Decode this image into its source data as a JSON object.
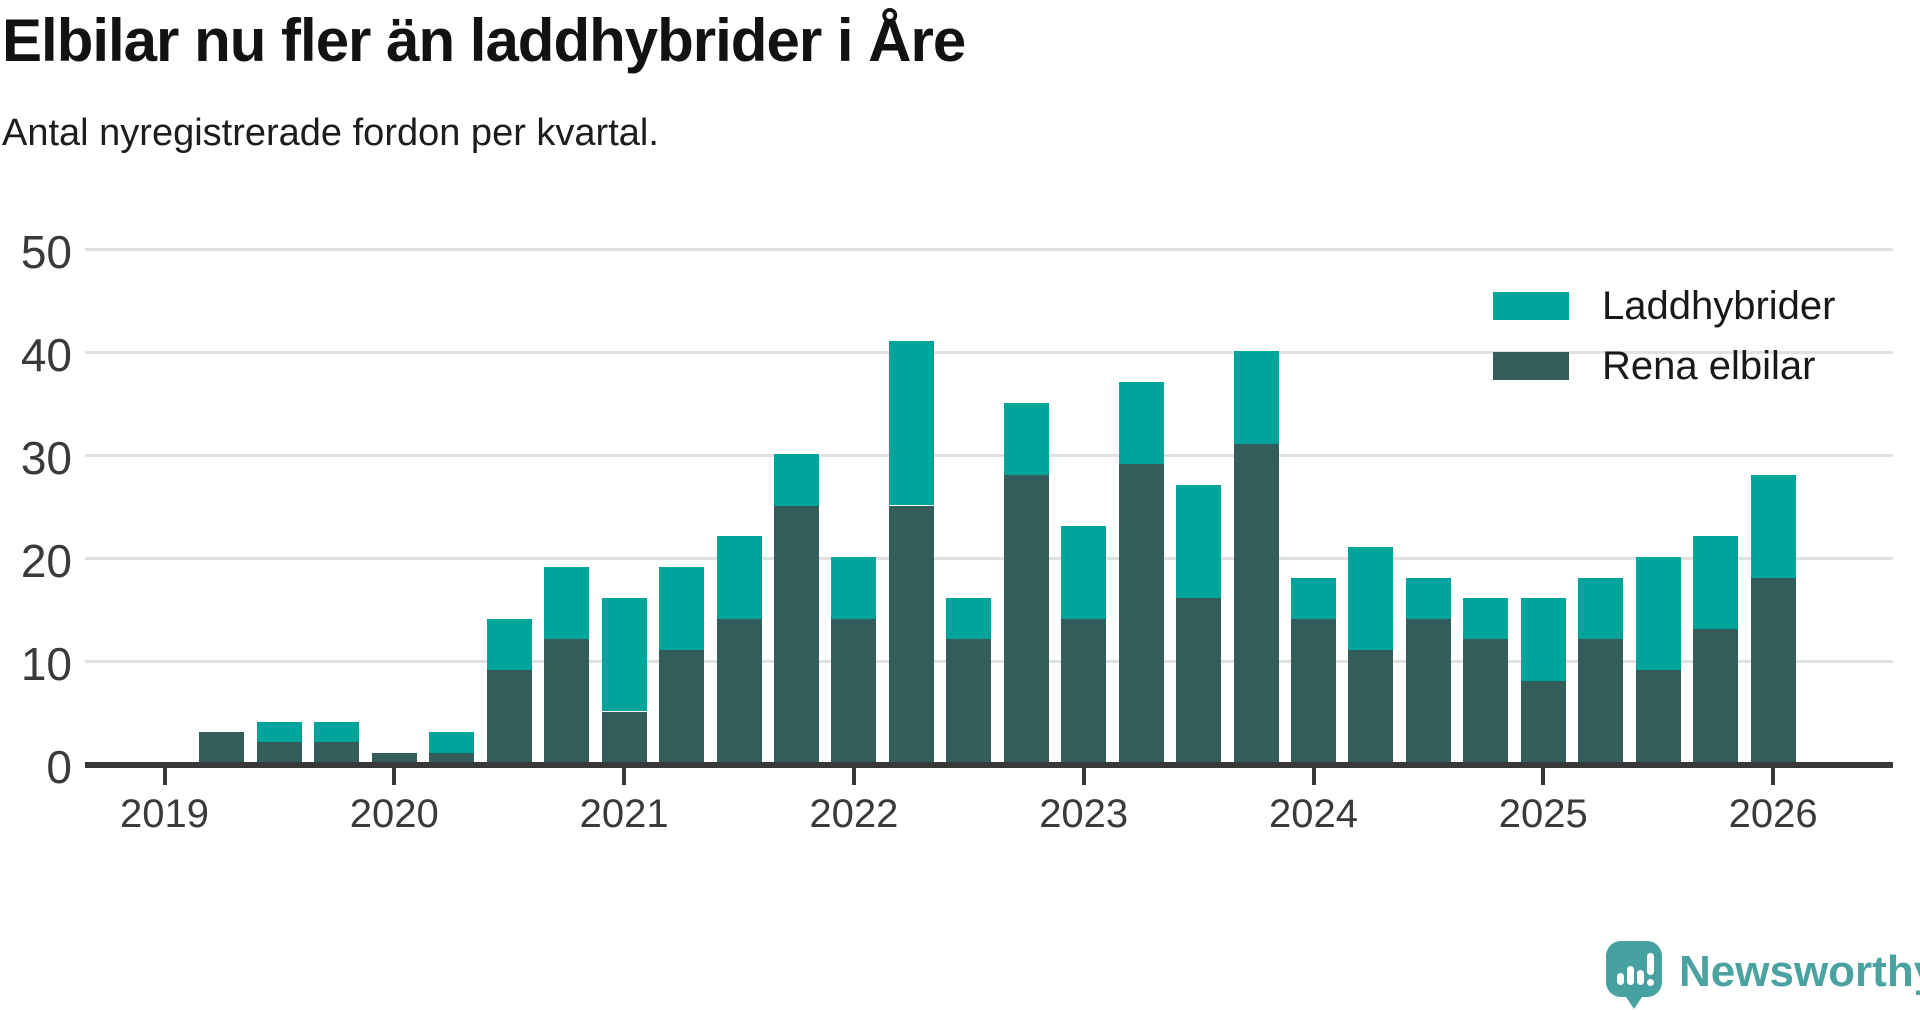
{
  "header": {
    "title": "Elbilar nu fler än laddhybrider i Åre",
    "subtitle": "Antal nyregistrerade fordon per kvartal."
  },
  "chart_data": {
    "type": "bar",
    "stacked": true,
    "title": "Elbilar nu fler än laddhybrider i Åre",
    "subtitle": "Antal nyregistrerade fordon per kvartal.",
    "xlabel": "",
    "ylabel": "",
    "ylim": [
      0,
      50
    ],
    "yticks": [
      0,
      10,
      20,
      30,
      40,
      50
    ],
    "grid": "horizontal",
    "legend_position": "top-right",
    "categories": [
      "2019 Q1",
      "2019 Q2",
      "2019 Q3",
      "2019 Q4",
      "2020 Q1",
      "2020 Q2",
      "2020 Q3",
      "2020 Q4",
      "2021 Q1",
      "2021 Q2",
      "2021 Q3",
      "2021 Q4",
      "2022 Q1",
      "2022 Q2",
      "2022 Q3",
      "2022 Q4",
      "2023 Q1",
      "2023 Q2",
      "2023 Q3",
      "2023 Q4",
      "2024 Q1",
      "2024 Q2",
      "2024 Q3",
      "2024 Q4",
      "2025 Q1",
      "2025 Q2",
      "2025 Q3",
      "2025 Q4",
      "2026 Q1"
    ],
    "series": [
      {
        "name": "Rena elbilar",
        "color": "#335d5a",
        "values": [
          0,
          3,
          2,
          2,
          1,
          1,
          9,
          12,
          5,
          11,
          14,
          25,
          14,
          25,
          12,
          28,
          14,
          29,
          16,
          31,
          14,
          11,
          14,
          12,
          8,
          12,
          9,
          13,
          18
        ]
      },
      {
        "name": "Laddhybrider",
        "color": "#00a49b",
        "values": [
          0,
          0,
          2,
          2,
          0,
          2,
          5,
          7,
          11,
          8,
          8,
          5,
          6,
          16,
          4,
          7,
          9,
          8,
          11,
          9,
          4,
          10,
          4,
          4,
          8,
          6,
          11,
          9,
          10
        ]
      }
    ],
    "stack_order_bottom_to_top": [
      "Rena elbilar",
      "Laddhybrider"
    ],
    "year_ticks": [
      "2019",
      "2020",
      "2021",
      "2022",
      "2023",
      "2024",
      "2025",
      "2026"
    ]
  },
  "legend": {
    "items": [
      {
        "label": "Laddhybrider",
        "color": "#00a49b"
      },
      {
        "label": "Rena elbilar",
        "color": "#335d5a"
      }
    ]
  },
  "colors": {
    "accent_light": "#00a49b",
    "accent_dark": "#335d5a",
    "axis": "#383838",
    "grid": "#e1e1e1",
    "brand": "#4aa3a0"
  },
  "footer": {
    "brand": "Newsworthy"
  }
}
